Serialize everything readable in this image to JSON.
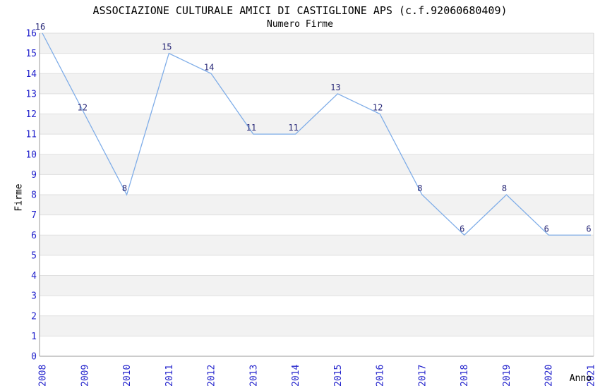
{
  "chart_data": {
    "type": "line",
    "title": "ASSOCIAZIONE CULTURALE AMICI DI CASTIGLIONE APS (c.f.92060680409)",
    "subtitle": "Numero Firme",
    "xlabel": "Anno",
    "ylabel": "Firme",
    "x": [
      2008,
      2009,
      2010,
      2011,
      2012,
      2013,
      2014,
      2015,
      2016,
      2017,
      2018,
      2019,
      2020,
      2021
    ],
    "values": [
      16,
      12,
      8,
      15,
      14,
      11,
      11,
      13,
      12,
      8,
      6,
      8,
      6,
      6
    ],
    "ylim": [
      0,
      16
    ],
    "y_tick_step": 1,
    "grid": "horizontal-only",
    "legend": "none",
    "point_labels_shown": true,
    "x_tick_rotation_deg": 90,
    "colors": {
      "line": "#7FADE8",
      "tick_label": "#2222CC",
      "point_label": "#272777",
      "band": "#F2F2F2",
      "grid": "#DFDFDF",
      "axis": "#999999",
      "border_right": "#D5D5D5",
      "title": "#000000",
      "background": "#FFFFFF"
    }
  }
}
